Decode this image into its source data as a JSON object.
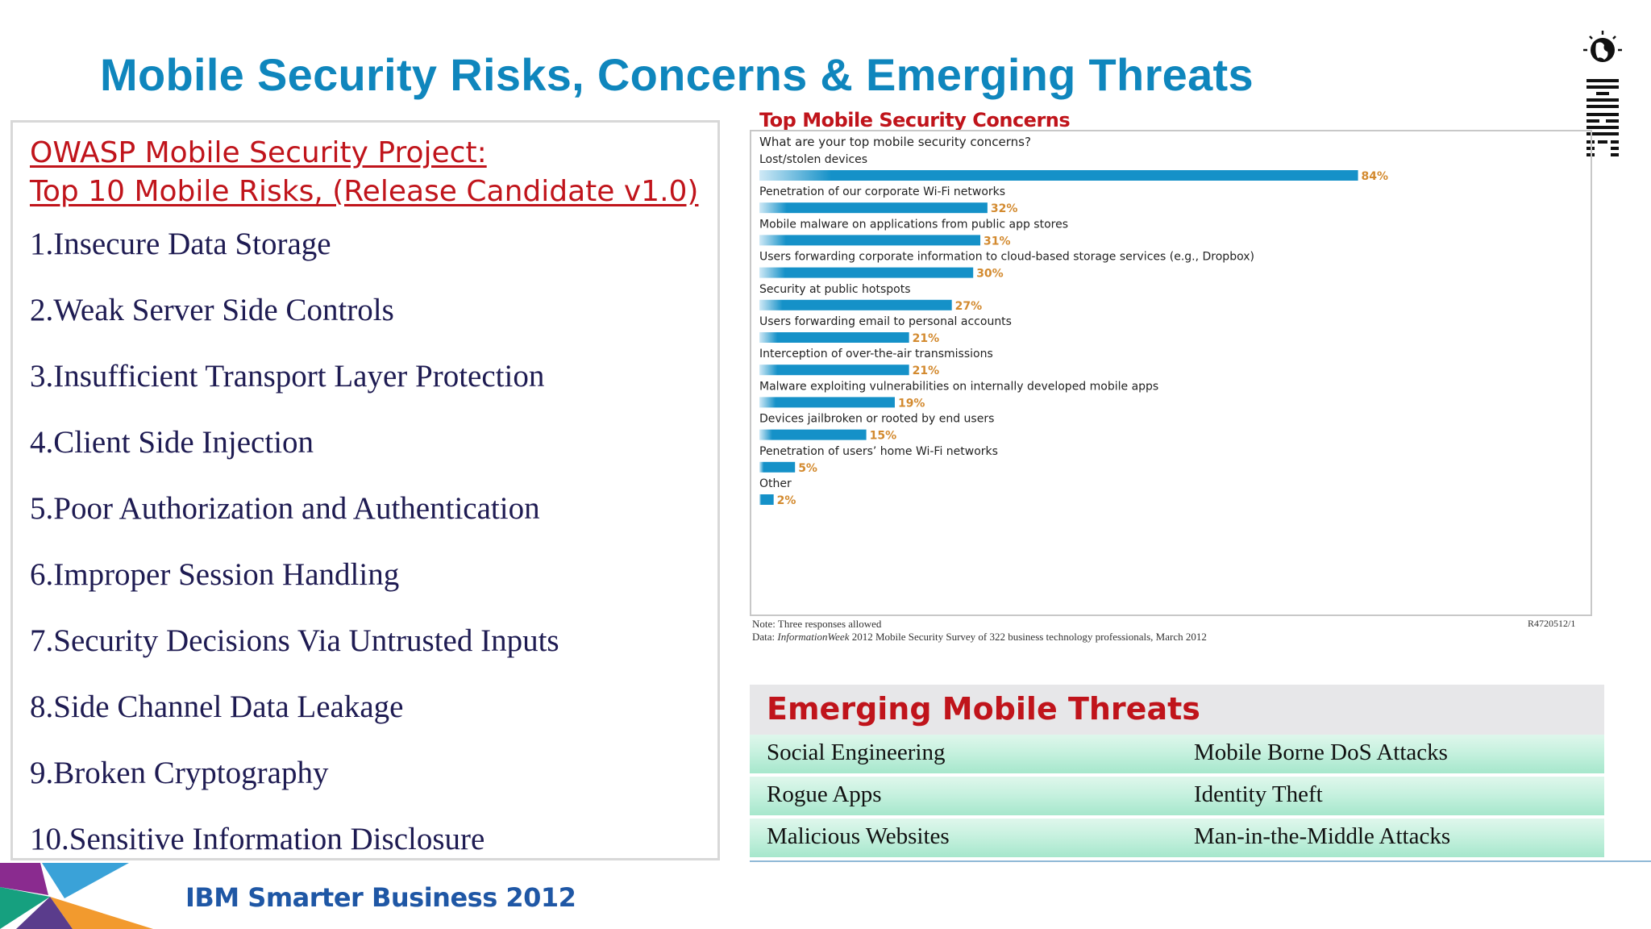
{
  "slide": {
    "title": "Mobile Security Risks, Concerns & Emerging Threats",
    "footer": "IBM Smarter Business 2012",
    "logo": "IBM"
  },
  "owasp": {
    "heading_line1": "OWASP Mobile Security Project: ",
    "heading_line2": "Top 10 Mobile Risks, (Release Candidate v1.0)",
    "items": [
      "1.Insecure Data Storage",
      "2.Weak Server Side Controls",
      "3.Insufficient Transport Layer Protection",
      "4.Client Side Injection",
      "5.Poor Authorization and Authentication",
      "6.Improper Session Handling",
      "7.Security Decisions Via Untrusted Inputs",
      "8.Side Channel Data Leakage",
      "9.Broken Cryptography",
      "10.Sensitive Information Disclosure"
    ]
  },
  "chart_data": {
    "type": "bar",
    "orientation": "horizontal",
    "title": "Top Mobile Security Concerns",
    "subtitle": "What are your top mobile security concerns?",
    "categories": [
      "Lost/stolen devices",
      "Penetration of our corporate Wi-Fi networks",
      "Mobile malware on applications from public app stores",
      "Users forwarding corporate information to cloud-based storage services (e.g., Dropbox)",
      "Security at public hotspots",
      "Users forwarding email to personal accounts",
      "Interception of over-the-air transmissions",
      "Malware exploiting vulnerabilities on internally developed mobile apps",
      "Devices jailbroken or rooted by end users",
      "Penetration of users’ home Wi-Fi networks",
      "Other"
    ],
    "values": [
      84,
      32,
      31,
      30,
      27,
      21,
      21,
      19,
      15,
      5,
      2
    ],
    "value_labels": [
      "84%",
      "32%",
      "31%",
      "30%",
      "27%",
      "21%",
      "21%",
      "19%",
      "15%",
      "5%",
      "2%"
    ],
    "unit": "%",
    "xlim": [
      0,
      100
    ],
    "grid": false,
    "legend": "none",
    "note": "Note: Three responses allowed",
    "source_prefix": "Data: ",
    "source_italic": "InformationWeek",
    "source_rest": " 2012 Mobile Security Survey of 322 business technology professionals, March 2012",
    "code": "R4720512/1",
    "colors": {
      "bar_dark": "#1591c8",
      "bar_light": "#cfe9f6",
      "label": "#d38a2f"
    }
  },
  "threats": {
    "title": "Emerging Mobile Threats",
    "rows": [
      [
        "Social Engineering",
        "Mobile Borne DoS Attacks"
      ],
      [
        "Rogue Apps",
        "Identity Theft"
      ],
      [
        "Malicious Websites",
        "Man-in-the-Middle Attacks"
      ]
    ]
  },
  "colors": {
    "title_blue": "#0f86bd",
    "heading_red": "#c0141b",
    "list_navy": "#1e1b52",
    "brand_blue": "#1f57a5"
  }
}
